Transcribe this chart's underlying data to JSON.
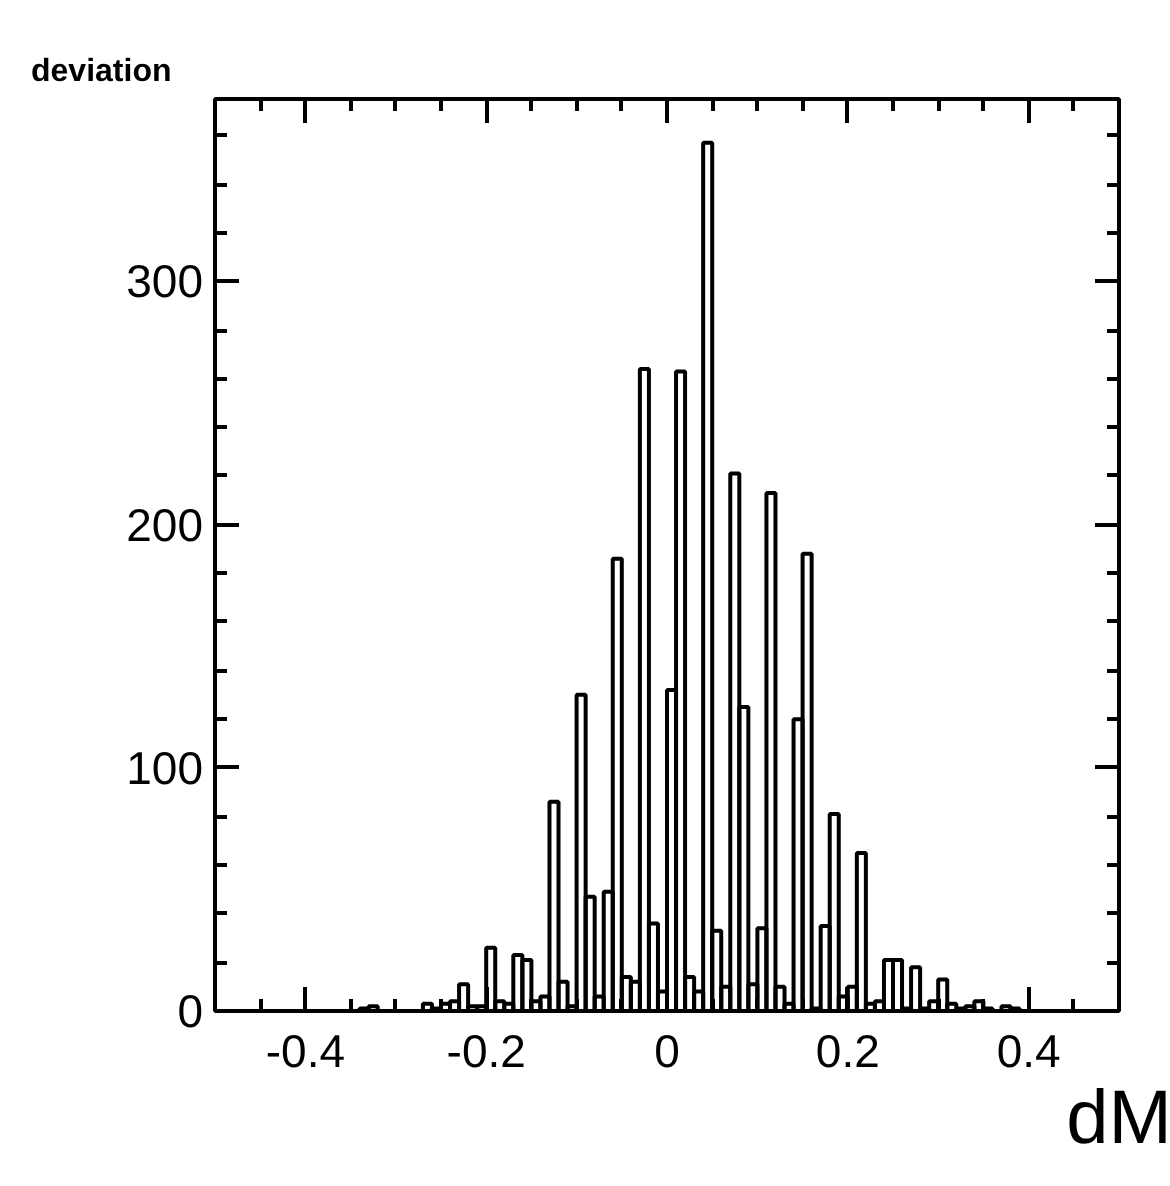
{
  "chart_data": {
    "type": "histogram",
    "title": "deviation",
    "xlabel": "dM",
    "bins": [
      -0.5,
      -0.49,
      -0.48,
      -0.47,
      -0.46,
      -0.45,
      -0.44,
      -0.43,
      -0.42,
      -0.41,
      -0.4,
      -0.39,
      -0.38,
      -0.37,
      -0.36,
      -0.35,
      -0.34,
      -0.33,
      -0.32,
      -0.31,
      -0.3,
      -0.29,
      -0.28,
      -0.27,
      -0.26,
      -0.25,
      -0.24,
      -0.23,
      -0.22,
      -0.21,
      -0.2,
      -0.19,
      -0.18,
      -0.17,
      -0.16,
      -0.15,
      -0.14,
      -0.13,
      -0.12,
      -0.11,
      -0.1,
      -0.09,
      -0.08,
      -0.07,
      -0.06,
      -0.05,
      -0.04,
      -0.03,
      -0.02,
      -0.01,
      0,
      0.01,
      0.02,
      0.03,
      0.04,
      0.05,
      0.06,
      0.07,
      0.08,
      0.09,
      0.1,
      0.11,
      0.12,
      0.13,
      0.14,
      0.15,
      0.16,
      0.17,
      0.18,
      0.19,
      0.2,
      0.21,
      0.22,
      0.23,
      0.24,
      0.25,
      0.26,
      0.27,
      0.28,
      0.29,
      0.3,
      0.31,
      0.32,
      0.33,
      0.34,
      0.35,
      0.36,
      0.37,
      0.38,
      0.39,
      0.4,
      0.41,
      0.42,
      0.43,
      0.44,
      0.45,
      0.46,
      0.47,
      0.48,
      0.49,
      0.5
    ],
    "values": [
      0,
      0,
      0,
      0,
      0,
      0,
      0,
      0,
      0,
      0,
      0,
      0,
      0,
      0,
      0,
      0,
      1,
      2,
      0,
      0,
      0,
      0,
      0,
      3,
      1,
      3,
      4,
      11,
      2,
      2,
      26,
      4,
      3,
      23,
      21,
      4,
      6,
      86,
      12,
      2,
      130,
      47,
      6,
      49,
      186,
      14,
      12,
      264,
      36,
      8,
      132,
      263,
      14,
      8,
      357,
      33,
      10,
      221,
      125,
      11,
      34,
      213,
      10,
      3,
      120,
      188,
      1,
      35,
      81,
      6,
      10,
      65,
      3,
      4,
      21,
      21,
      1,
      18,
      1,
      4,
      13,
      3,
      1,
      2,
      4,
      1,
      0,
      2,
      1,
      0,
      0,
      0,
      0,
      0,
      0,
      0,
      0,
      0,
      0,
      0
    ],
    "color": "#000000",
    "xlim": [
      -0.5,
      0.5
    ],
    "xticks": [
      -0.4,
      -0.2,
      0,
      0.2,
      0.4
    ],
    "ylim": [
      0,
      375
    ],
    "yticks": [
      0,
      100,
      200,
      300
    ],
    "grid": false
  }
}
